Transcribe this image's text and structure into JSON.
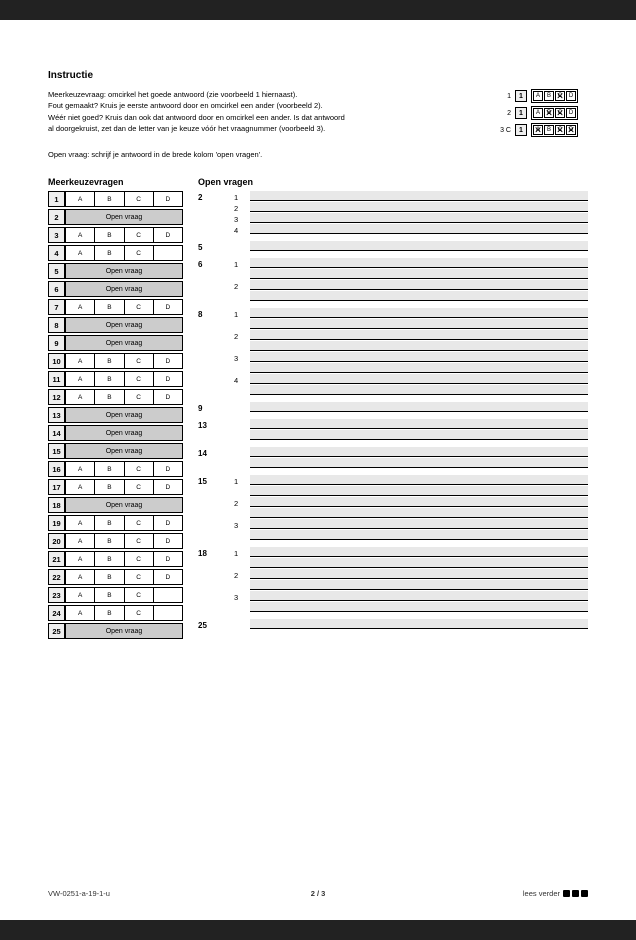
{
  "title": "Instructie",
  "instruction_lines": [
    "Meerkeuzevraag: omcirkel het goede antwoord (zie voorbeeld 1 hiernaast).",
    "Fout gemaakt? Kruis je eerste antwoord door en omcirkel een ander (voorbeeld 2).",
    "Wéér niet goed? Kruis dan ook dat antwoord door en omcirkel een ander. Is dat antwoord",
    "al doorgekruist, zet dan de letter van je keuze vóór het vraagnummer (voorbeeld 3)."
  ],
  "subtitle": "Open vraag: schrijf je antwoord in de brede kolom 'open vragen'.",
  "examples": [
    {
      "label": "1",
      "num": "1",
      "opts": [
        "A",
        "B",
        "C",
        "D"
      ],
      "crossed": [
        2
      ]
    },
    {
      "label": "2",
      "num": "1",
      "opts": [
        "A",
        "B",
        "C",
        "D"
      ],
      "crossed": [
        1,
        2
      ]
    },
    {
      "label": "3 C",
      "num": "1",
      "opts": [
        "A",
        "B",
        "C",
        "D"
      ],
      "crossed": [
        0,
        2,
        3
      ]
    }
  ],
  "left_header": "Meerkeuzevragen",
  "right_header": "Open vragen",
  "mc_rows": [
    {
      "n": "1",
      "type": "mc",
      "opts": [
        "A",
        "B",
        "C",
        "D"
      ]
    },
    {
      "n": "2",
      "type": "open"
    },
    {
      "n": "3",
      "type": "mc",
      "opts": [
        "A",
        "B",
        "C",
        "D"
      ]
    },
    {
      "n": "4",
      "type": "mc",
      "opts": [
        "A",
        "B",
        "C",
        ""
      ]
    },
    {
      "n": "5",
      "type": "open"
    },
    {
      "n": "6",
      "type": "open"
    },
    {
      "n": "7",
      "type": "mc",
      "opts": [
        "A",
        "B",
        "C",
        "D"
      ]
    },
    {
      "n": "8",
      "type": "open"
    },
    {
      "n": "9",
      "type": "open"
    },
    {
      "n": "10",
      "type": "mc",
      "opts": [
        "A",
        "B",
        "C",
        "D"
      ]
    },
    {
      "n": "11",
      "type": "mc",
      "opts": [
        "A",
        "B",
        "C",
        "D"
      ]
    },
    {
      "n": "12",
      "type": "mc",
      "opts": [
        "A",
        "B",
        "C",
        "D"
      ]
    },
    {
      "n": "13",
      "type": "open"
    },
    {
      "n": "14",
      "type": "open"
    },
    {
      "n": "15",
      "type": "open"
    },
    {
      "n": "16",
      "type": "mc",
      "opts": [
        "A",
        "B",
        "C",
        "D"
      ]
    },
    {
      "n": "17",
      "type": "mc",
      "opts": [
        "A",
        "B",
        "C",
        "D"
      ]
    },
    {
      "n": "18",
      "type": "open"
    },
    {
      "n": "19",
      "type": "mc",
      "opts": [
        "A",
        "B",
        "C",
        "D"
      ]
    },
    {
      "n": "20",
      "type": "mc",
      "opts": [
        "A",
        "B",
        "C",
        "D"
      ]
    },
    {
      "n": "21",
      "type": "mc",
      "opts": [
        "A",
        "B",
        "C",
        "D"
      ]
    },
    {
      "n": "22",
      "type": "mc",
      "opts": [
        "A",
        "B",
        "C",
        "D"
      ]
    },
    {
      "n": "23",
      "type": "mc",
      "opts": [
        "A",
        "B",
        "C",
        ""
      ]
    },
    {
      "n": "24",
      "type": "mc",
      "opts": [
        "A",
        "B",
        "C",
        ""
      ]
    },
    {
      "n": "25",
      "type": "open"
    }
  ],
  "open_label": "Open vraag",
  "open_groups": [
    {
      "label": "2",
      "lines": [
        {
          "sub": "1"
        },
        {
          "sub": "2"
        },
        {
          "sub": "3"
        },
        {
          "sub": "4"
        }
      ]
    },
    {
      "label": "5",
      "lines": [
        {
          "sub": ""
        }
      ]
    },
    {
      "label": "6",
      "lines": [
        {
          "sub": "1"
        },
        {
          "sub": ""
        },
        {
          "sub": "2"
        },
        {
          "sub": ""
        }
      ]
    },
    {
      "label": "8",
      "lines": [
        {
          "sub": "1"
        },
        {
          "sub": ""
        },
        {
          "sub": "2"
        },
        {
          "sub": ""
        },
        {
          "sub": "3"
        },
        {
          "sub": ""
        },
        {
          "sub": "4"
        },
        {
          "sub": ""
        }
      ]
    },
    {
      "label": "9",
      "lines": [
        {
          "sub": ""
        }
      ]
    },
    {
      "label": "13",
      "lines": [
        {
          "sub": ""
        },
        {
          "sub": ""
        }
      ]
    },
    {
      "label": "14",
      "lines": [
        {
          "sub": ""
        },
        {
          "sub": ""
        }
      ]
    },
    {
      "label": "15",
      "lines": [
        {
          "sub": "1"
        },
        {
          "sub": ""
        },
        {
          "sub": "2"
        },
        {
          "sub": ""
        },
        {
          "sub": "3"
        },
        {
          "sub": ""
        }
      ]
    },
    {
      "label": "18",
      "lines": [
        {
          "sub": "1"
        },
        {
          "sub": ""
        },
        {
          "sub": "2"
        },
        {
          "sub": ""
        },
        {
          "sub": "3"
        },
        {
          "sub": ""
        }
      ]
    },
    {
      "label": "25",
      "lines": [
        {
          "sub": ""
        }
      ]
    }
  ],
  "footer": {
    "left": "VW-0251-a-19-1-u",
    "center": "2 / 3",
    "right": "lees verder"
  }
}
